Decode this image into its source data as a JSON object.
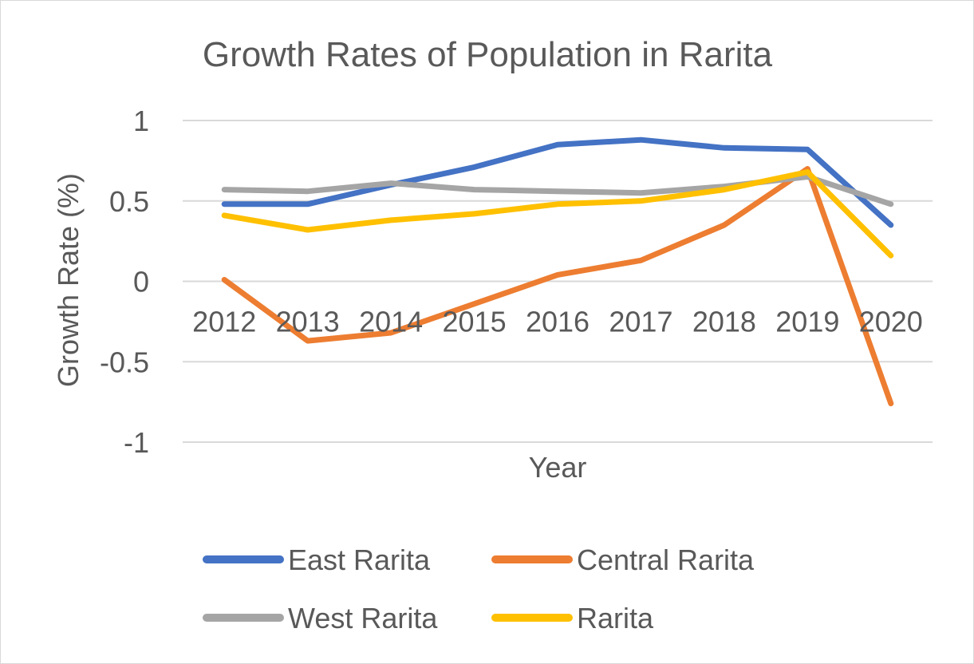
{
  "chart_data": {
    "type": "line",
    "title": "Growth Rates of Population in Rarita",
    "xlabel": "Year",
    "ylabel": "Growth Rate (%)",
    "x": [
      "2012",
      "2013",
      "2014",
      "2015",
      "2016",
      "2017",
      "2018",
      "2019",
      "2020"
    ],
    "ylim": [
      -1,
      1
    ],
    "yticks": [
      1,
      0.5,
      0,
      -0.5,
      -1
    ],
    "ytick_labels": [
      "1",
      "0.5",
      "0",
      "-0.5",
      "-1"
    ],
    "grid": true,
    "legend_position": "bottom",
    "series": [
      {
        "name": "East Rarita",
        "color": "#4472c4",
        "values": [
          0.48,
          0.48,
          0.6,
          0.71,
          0.85,
          0.88,
          0.83,
          0.82,
          0.35
        ]
      },
      {
        "name": "Central Rarita",
        "color": "#ed7d31",
        "values": [
          0.01,
          -0.37,
          -0.32,
          -0.14,
          0.04,
          0.13,
          0.35,
          0.7,
          -0.76
        ]
      },
      {
        "name": "West Rarita",
        "color": "#a5a5a5",
        "values": [
          0.57,
          0.56,
          0.61,
          0.57,
          0.56,
          0.55,
          0.59,
          0.65,
          0.48
        ]
      },
      {
        "name": "Rarita",
        "color": "#ffc000",
        "values": [
          0.41,
          0.32,
          0.38,
          0.42,
          0.48,
          0.5,
          0.57,
          0.68,
          0.16
        ]
      }
    ]
  }
}
